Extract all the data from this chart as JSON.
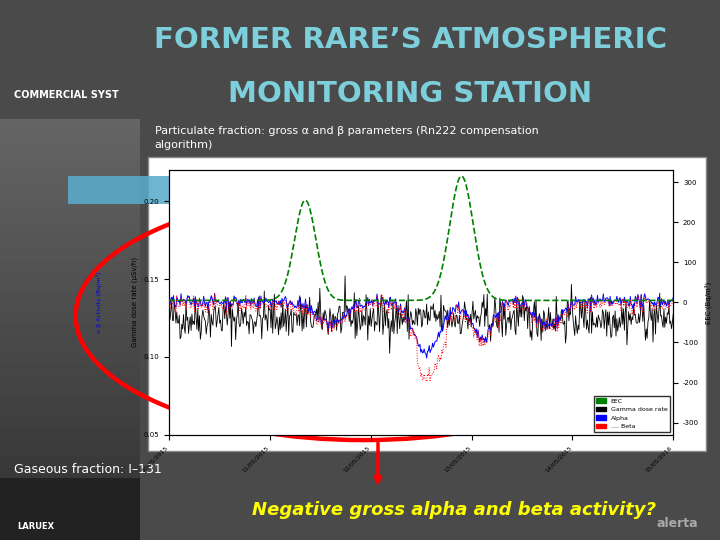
{
  "bg_color": "#4a4a4a",
  "title_line1": "FORMER RARE’S ATMOSPHERIC",
  "title_line2": "MONITORING STATION",
  "title_color": "#7ecfdc",
  "commercial_text": "COMMERCIAL SYST",
  "commercial_color": "#ffffff",
  "subtitle_text": "Particulate fraction: gross α and β parameters (Rn222 compensation\nalgorithm)",
  "subtitle_color": "#ffffff",
  "gaseous_text": "Gaseous fraction: I–131",
  "gaseous_color": "#ffffff",
  "bottom_text": "Negative gross alpha and beta activity?",
  "bottom_color": "#ffff00"
}
